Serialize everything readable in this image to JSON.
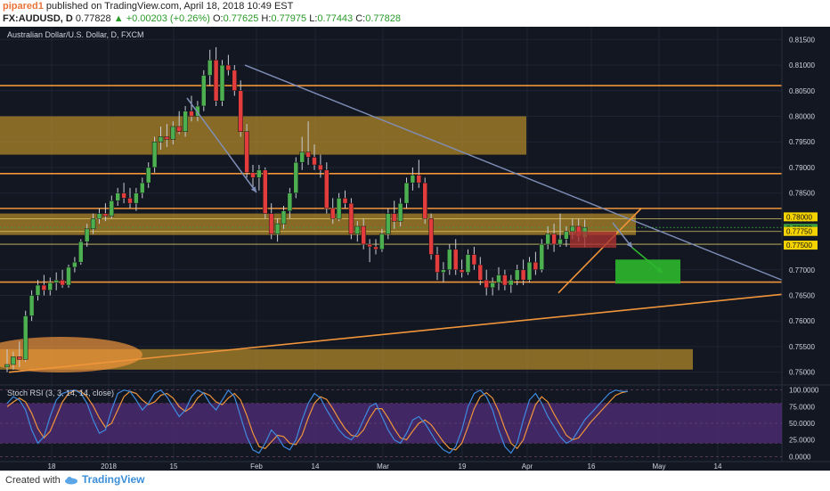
{
  "header": {
    "author": "pipared1",
    "published_text": "published on TradingView.com, April 18, 2018 10:49 EST",
    "symbol": "FX:AUDUSD, D",
    "last": "0.77828",
    "change": "+0.00203 (+0.26%)",
    "open_label": "O:",
    "open": "0.77625",
    "high_label": "H:",
    "high": "0.77975",
    "low_label": "L:",
    "low": "0.77443",
    "close_label": "C:",
    "close": "0.77828"
  },
  "footer": {
    "created_with": "Created with",
    "brand": "TradingView"
  },
  "colors": {
    "background": "#131722",
    "up": "#4caf50",
    "down": "#e23c3c",
    "zone": "#b58a2a",
    "line_orange": "#f0953a",
    "trendline": "#7f8fb8",
    "stoch_k": "#3f8be0",
    "stoch_d": "#f0953a",
    "stoch_band": "#4a2a6e",
    "yellow_zone": "#e8d36a",
    "target_green": "#2eb82e",
    "stop_red": "#a83232"
  },
  "chart_data": {
    "type": "candlestick",
    "title": "Australian Dollar/U.S. Dollar, D, FXCM",
    "ylim": [
      0.7475,
      0.8175
    ],
    "yticks": [
      "0.81500",
      "0.81000",
      "0.80500",
      "0.80000",
      "0.79500",
      "0.79000",
      "0.78500",
      "0.78000",
      "0.77500",
      "0.77000",
      "0.76500",
      "0.76000",
      "0.75500",
      "0.75000"
    ],
    "xticks": [
      "18",
      "2018",
      "15",
      "Feb",
      "14",
      "Mar",
      "19",
      "Apr",
      "16",
      "May",
      "14"
    ],
    "price_tags": [
      {
        "label": "0.78000",
        "value": 0.78,
        "color": "#f5d300"
      },
      {
        "label": "0.77828",
        "value": 0.77828,
        "color": "#3d9e3d"
      },
      {
        "label": "0.77750",
        "value": 0.7775,
        "color": "#f5d300"
      },
      {
        "label": "0.77500",
        "value": 0.775,
        "color": "#f5d300"
      }
    ],
    "candles": [
      {
        "o": 0.751,
        "h": 0.7545,
        "l": 0.75,
        "c": 0.7515
      },
      {
        "o": 0.7515,
        "h": 0.754,
        "l": 0.7505,
        "c": 0.753
      },
      {
        "o": 0.753,
        "h": 0.756,
        "l": 0.751,
        "c": 0.7525
      },
      {
        "o": 0.7525,
        "h": 0.762,
        "l": 0.752,
        "c": 0.761
      },
      {
        "o": 0.761,
        "h": 0.766,
        "l": 0.76,
        "c": 0.765
      },
      {
        "o": 0.765,
        "h": 0.768,
        "l": 0.764,
        "c": 0.767
      },
      {
        "o": 0.767,
        "h": 0.769,
        "l": 0.765,
        "c": 0.766
      },
      {
        "o": 0.766,
        "h": 0.7685,
        "l": 0.765,
        "c": 0.7675
      },
      {
        "o": 0.7675,
        "h": 0.7695,
        "l": 0.766,
        "c": 0.768
      },
      {
        "o": 0.768,
        "h": 0.77,
        "l": 0.7665,
        "c": 0.767
      },
      {
        "o": 0.767,
        "h": 0.771,
        "l": 0.7665,
        "c": 0.7705
      },
      {
        "o": 0.7705,
        "h": 0.7725,
        "l": 0.7695,
        "c": 0.7715
      },
      {
        "o": 0.7715,
        "h": 0.776,
        "l": 0.771,
        "c": 0.7755
      },
      {
        "o": 0.7755,
        "h": 0.779,
        "l": 0.7745,
        "c": 0.778
      },
      {
        "o": 0.778,
        "h": 0.781,
        "l": 0.777,
        "c": 0.78
      },
      {
        "o": 0.78,
        "h": 0.782,
        "l": 0.779,
        "c": 0.781
      },
      {
        "o": 0.781,
        "h": 0.783,
        "l": 0.7795,
        "c": 0.7805
      },
      {
        "o": 0.7805,
        "h": 0.7845,
        "l": 0.78,
        "c": 0.7835
      },
      {
        "o": 0.7835,
        "h": 0.786,
        "l": 0.7825,
        "c": 0.785
      },
      {
        "o": 0.785,
        "h": 0.787,
        "l": 0.783,
        "c": 0.784
      },
      {
        "o": 0.784,
        "h": 0.786,
        "l": 0.782,
        "c": 0.783
      },
      {
        "o": 0.783,
        "h": 0.786,
        "l": 0.7815,
        "c": 0.785
      },
      {
        "o": 0.785,
        "h": 0.788,
        "l": 0.784,
        "c": 0.787
      },
      {
        "o": 0.787,
        "h": 0.791,
        "l": 0.786,
        "c": 0.79
      },
      {
        "o": 0.79,
        "h": 0.796,
        "l": 0.789,
        "c": 0.795
      },
      {
        "o": 0.795,
        "h": 0.798,
        "l": 0.7935,
        "c": 0.796
      },
      {
        "o": 0.796,
        "h": 0.7985,
        "l": 0.794,
        "c": 0.7955
      },
      {
        "o": 0.7955,
        "h": 0.799,
        "l": 0.7945,
        "c": 0.798
      },
      {
        "o": 0.798,
        "h": 0.801,
        "l": 0.7965,
        "c": 0.797
      },
      {
        "o": 0.797,
        "h": 0.802,
        "l": 0.796,
        "c": 0.801
      },
      {
        "o": 0.801,
        "h": 0.804,
        "l": 0.799,
        "c": 0.8
      },
      {
        "o": 0.8,
        "h": 0.803,
        "l": 0.799,
        "c": 0.802
      },
      {
        "o": 0.802,
        "h": 0.809,
        "l": 0.801,
        "c": 0.808
      },
      {
        "o": 0.808,
        "h": 0.813,
        "l": 0.806,
        "c": 0.811
      },
      {
        "o": 0.811,
        "h": 0.8135,
        "l": 0.802,
        "c": 0.803
      },
      {
        "o": 0.803,
        "h": 0.811,
        "l": 0.802,
        "c": 0.81
      },
      {
        "o": 0.81,
        "h": 0.812,
        "l": 0.808,
        "c": 0.809
      },
      {
        "o": 0.809,
        "h": 0.81,
        "l": 0.804,
        "c": 0.805
      },
      {
        "o": 0.805,
        "h": 0.807,
        "l": 0.796,
        "c": 0.797
      },
      {
        "o": 0.797,
        "h": 0.7985,
        "l": 0.788,
        "c": 0.789
      },
      {
        "o": 0.789,
        "h": 0.7905,
        "l": 0.786,
        "c": 0.788
      },
      {
        "o": 0.788,
        "h": 0.7905,
        "l": 0.7855,
        "c": 0.7895
      },
      {
        "o": 0.7895,
        "h": 0.79,
        "l": 0.78,
        "c": 0.781
      },
      {
        "o": 0.781,
        "h": 0.783,
        "l": 0.776,
        "c": 0.777
      },
      {
        "o": 0.777,
        "h": 0.78,
        "l": 0.7755,
        "c": 0.779
      },
      {
        "o": 0.779,
        "h": 0.7825,
        "l": 0.778,
        "c": 0.7815
      },
      {
        "o": 0.7815,
        "h": 0.786,
        "l": 0.78,
        "c": 0.785
      },
      {
        "o": 0.785,
        "h": 0.792,
        "l": 0.784,
        "c": 0.791
      },
      {
        "o": 0.791,
        "h": 0.796,
        "l": 0.7895,
        "c": 0.793
      },
      {
        "o": 0.793,
        "h": 0.799,
        "l": 0.7905,
        "c": 0.792
      },
      {
        "o": 0.792,
        "h": 0.7945,
        "l": 0.7895,
        "c": 0.7905
      },
      {
        "o": 0.7905,
        "h": 0.7925,
        "l": 0.788,
        "c": 0.7895
      },
      {
        "o": 0.7895,
        "h": 0.791,
        "l": 0.781,
        "c": 0.782
      },
      {
        "o": 0.782,
        "h": 0.784,
        "l": 0.779,
        "c": 0.78
      },
      {
        "o": 0.78,
        "h": 0.785,
        "l": 0.7795,
        "c": 0.784
      },
      {
        "o": 0.784,
        "h": 0.7855,
        "l": 0.782,
        "c": 0.783
      },
      {
        "o": 0.783,
        "h": 0.784,
        "l": 0.776,
        "c": 0.777
      },
      {
        "o": 0.777,
        "h": 0.7795,
        "l": 0.7755,
        "c": 0.7785
      },
      {
        "o": 0.7785,
        "h": 0.78,
        "l": 0.774,
        "c": 0.775
      },
      {
        "o": 0.775,
        "h": 0.776,
        "l": 0.7715,
        "c": 0.7745
      },
      {
        "o": 0.7745,
        "h": 0.776,
        "l": 0.773,
        "c": 0.774
      },
      {
        "o": 0.774,
        "h": 0.778,
        "l": 0.7735,
        "c": 0.777
      },
      {
        "o": 0.777,
        "h": 0.782,
        "l": 0.776,
        "c": 0.781
      },
      {
        "o": 0.781,
        "h": 0.7835,
        "l": 0.778,
        "c": 0.7795
      },
      {
        "o": 0.7795,
        "h": 0.784,
        "l": 0.7785,
        "c": 0.783
      },
      {
        "o": 0.783,
        "h": 0.788,
        "l": 0.782,
        "c": 0.787
      },
      {
        "o": 0.787,
        "h": 0.79,
        "l": 0.7855,
        "c": 0.7885
      },
      {
        "o": 0.7885,
        "h": 0.7915,
        "l": 0.786,
        "c": 0.787
      },
      {
        "o": 0.787,
        "h": 0.788,
        "l": 0.779,
        "c": 0.78
      },
      {
        "o": 0.78,
        "h": 0.781,
        "l": 0.772,
        "c": 0.773
      },
      {
        "o": 0.773,
        "h": 0.7745,
        "l": 0.768,
        "c": 0.7695
      },
      {
        "o": 0.7695,
        "h": 0.7715,
        "l": 0.7675,
        "c": 0.77
      },
      {
        "o": 0.77,
        "h": 0.775,
        "l": 0.769,
        "c": 0.774
      },
      {
        "o": 0.774,
        "h": 0.776,
        "l": 0.769,
        "c": 0.77
      },
      {
        "o": 0.77,
        "h": 0.772,
        "l": 0.7685,
        "c": 0.7695
      },
      {
        "o": 0.7695,
        "h": 0.774,
        "l": 0.769,
        "c": 0.773
      },
      {
        "o": 0.773,
        "h": 0.7745,
        "l": 0.77,
        "c": 0.771
      },
      {
        "o": 0.771,
        "h": 0.7725,
        "l": 0.767,
        "c": 0.768
      },
      {
        "o": 0.768,
        "h": 0.77,
        "l": 0.765,
        "c": 0.7665
      },
      {
        "o": 0.7665,
        "h": 0.7685,
        "l": 0.765,
        "c": 0.7675
      },
      {
        "o": 0.7675,
        "h": 0.7705,
        "l": 0.766,
        "c": 0.769
      },
      {
        "o": 0.769,
        "h": 0.77,
        "l": 0.766,
        "c": 0.767
      },
      {
        "o": 0.767,
        "h": 0.769,
        "l": 0.7655,
        "c": 0.768
      },
      {
        "o": 0.768,
        "h": 0.771,
        "l": 0.767,
        "c": 0.77
      },
      {
        "o": 0.77,
        "h": 0.772,
        "l": 0.767,
        "c": 0.768
      },
      {
        "o": 0.768,
        "h": 0.7725,
        "l": 0.7675,
        "c": 0.7715
      },
      {
        "o": 0.7715,
        "h": 0.7735,
        "l": 0.769,
        "c": 0.77
      },
      {
        "o": 0.77,
        "h": 0.776,
        "l": 0.7695,
        "c": 0.775
      },
      {
        "o": 0.775,
        "h": 0.7785,
        "l": 0.774,
        "c": 0.777
      },
      {
        "o": 0.777,
        "h": 0.779,
        "l": 0.7735,
        "c": 0.775
      },
      {
        "o": 0.775,
        "h": 0.781,
        "l": 0.7745,
        "c": 0.776
      },
      {
        "o": 0.776,
        "h": 0.7785,
        "l": 0.7745,
        "c": 0.7775
      },
      {
        "o": 0.7775,
        "h": 0.78,
        "l": 0.776,
        "c": 0.7785
      },
      {
        "o": 0.7785,
        "h": 0.78,
        "l": 0.7755,
        "c": 0.7765
      },
      {
        "o": 0.7763,
        "h": 0.7798,
        "l": 0.7744,
        "c": 0.7783
      }
    ],
    "zones": [
      {
        "y1": 0.8,
        "y2": 0.7925,
        "x1": 0,
        "x2": 591
      },
      {
        "y1": 0.781,
        "y2": 0.7768,
        "x1": 0,
        "x2": 714
      },
      {
        "y1": 0.7545,
        "y2": 0.7505,
        "x1": 0,
        "x2": 778
      }
    ],
    "hlines": [
      0.806,
      0.7888,
      0.782,
      0.7676
    ],
    "stoch_rsi": {
      "label": "Stoch RSI (3, 3, 14, 14, close)",
      "ylim": [
        -5,
        105
      ],
      "yticks": [
        "100.0000",
        "75.0000",
        "50.0000",
        "25.0000",
        "0.0000"
      ],
      "band": [
        20,
        80
      ],
      "k": [
        80,
        90,
        85,
        70,
        40,
        20,
        30,
        60,
        85,
        95,
        98,
        100,
        95,
        80,
        55,
        35,
        40,
        70,
        95,
        100,
        98,
        85,
        70,
        80,
        95,
        100,
        90,
        75,
        60,
        70,
        90,
        100,
        95,
        80,
        70,
        85,
        100,
        90,
        60,
        30,
        10,
        5,
        20,
        40,
        30,
        15,
        10,
        25,
        55,
        80,
        95,
        88,
        70,
        55,
        40,
        30,
        25,
        35,
        55,
        75,
        80,
        60,
        40,
        25,
        20,
        35,
        55,
        60,
        50,
        35,
        20,
        10,
        5,
        15,
        40,
        75,
        95,
        100,
        90,
        70,
        40,
        15,
        5,
        20,
        55,
        85,
        95,
        80,
        60,
        45,
        30,
        20,
        25,
        40,
        55,
        65,
        75,
        85,
        95,
        100,
        98,
        98
      ],
      "d": [
        75,
        82,
        88,
        82,
        65,
        42,
        28,
        38,
        60,
        82,
        95,
        99,
        98,
        90,
        76,
        58,
        44,
        50,
        70,
        90,
        98,
        95,
        85,
        78,
        82,
        92,
        95,
        88,
        75,
        68,
        74,
        88,
        96,
        92,
        82,
        78,
        88,
        95,
        85,
        62,
        35,
        15,
        12,
        22,
        32,
        30,
        20,
        18,
        32,
        58,
        80,
        90,
        86,
        72,
        56,
        42,
        32,
        30,
        40,
        58,
        72,
        72,
        58,
        42,
        28,
        25,
        38,
        50,
        55,
        48,
        35,
        22,
        12,
        10,
        20,
        45,
        72,
        90,
        96,
        88,
        68,
        42,
        20,
        12,
        25,
        52,
        78,
        90,
        82,
        64,
        48,
        32,
        25,
        28,
        40,
        52,
        62,
        72,
        82,
        92,
        96,
        98
      ]
    }
  }
}
